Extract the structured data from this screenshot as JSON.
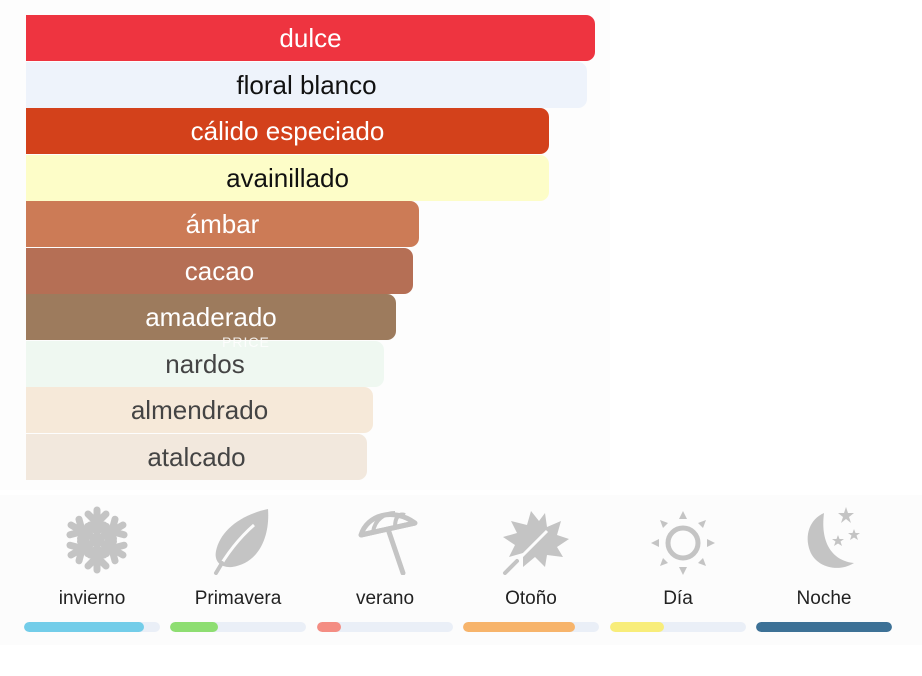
{
  "accords": [
    {
      "label": "dulce",
      "level": 1.0,
      "color": "#ee3440",
      "text_color": "#ffffff"
    },
    {
      "label": "floral blanco",
      "level": 0.986,
      "color": "#eef3fb",
      "text_color": "#111111"
    },
    {
      "label": "cálido especiado",
      "level": 0.92,
      "color": "#d3411b",
      "text_color": "#ffffff"
    },
    {
      "label": "avainillado",
      "level": 0.92,
      "color": "#fdfdc8",
      "text_color": "#111111"
    },
    {
      "label": "ámbar",
      "level": 0.69,
      "color": "#cc7b56",
      "text_color": "#ffffff"
    },
    {
      "label": "cacao",
      "level": 0.68,
      "color": "#b56f55",
      "text_color": "#ffffff"
    },
    {
      "label": "amaderado",
      "level": 0.65,
      "color": "#9d7b5d",
      "text_color": "#ffffff"
    },
    {
      "label": "nardos",
      "level": 0.63,
      "color": "#eff8f1",
      "text_color": "#444444"
    },
    {
      "label": "almendrado",
      "level": 0.61,
      "color": "#f6e9d9",
      "text_color": "#444444"
    },
    {
      "label": "atalcado",
      "level": 0.6,
      "color": "#f2e8dd",
      "text_color": "#444444"
    }
  ],
  "watermark": "PRICE",
  "seasons": [
    {
      "label": "invierno",
      "icon": "snowflake-icon",
      "level": 0.88,
      "color": "#73cde9"
    },
    {
      "label": "Primavera",
      "icon": "leaf-icon",
      "level": 0.35,
      "color": "#8ede72"
    },
    {
      "label": "verano",
      "icon": "umbrella-icon",
      "level": 0.18,
      "color": "#f48d83"
    },
    {
      "label": "Otoño",
      "icon": "maple-leaf-icon",
      "level": 0.82,
      "color": "#f7b46b"
    },
    {
      "label": "Día",
      "icon": "sun-icon",
      "level": 0.4,
      "color": "#f8ed7a"
    },
    {
      "label": "Noche",
      "icon": "moon-stars-icon",
      "level": 1.0,
      "color": "#3d7196"
    }
  ]
}
